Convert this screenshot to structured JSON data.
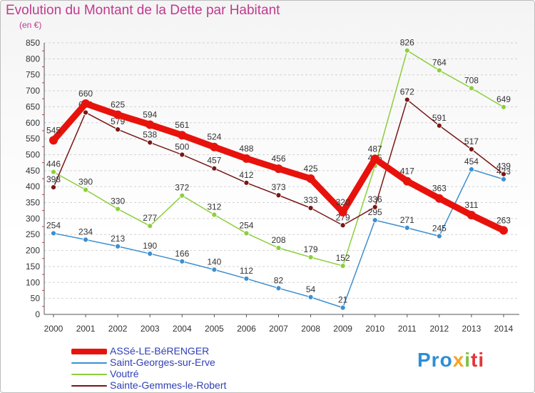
{
  "header": {
    "title": "Evolution du Montant de la Dette par Habitant",
    "unit": "(en €)"
  },
  "logo": {
    "text": "Proxiti"
  },
  "chart_data": {
    "type": "line",
    "title": "Evolution du Montant de la Dette par Habitant",
    "ylabel": "(en €)",
    "xlabel": "",
    "x": [
      "2000",
      "2001",
      "2002",
      "2003",
      "2004",
      "2005",
      "2006",
      "2007",
      "2008",
      "2009",
      "2010",
      "2011",
      "2012",
      "2013",
      "2014"
    ],
    "ylim": [
      0,
      850
    ],
    "yticks": [
      0,
      50,
      100,
      150,
      200,
      250,
      300,
      350,
      400,
      450,
      500,
      550,
      600,
      650,
      700,
      750,
      800,
      850
    ],
    "grid": "horizontal",
    "legend_position": "bottom-left",
    "series": [
      {
        "name": "ASSé-LE-BéRENGER",
        "color": "#e8120c",
        "values": [
          545,
          660,
          625,
          594,
          561,
          524,
          488,
          456,
          425,
          320,
          487,
          417,
          363,
          311,
          263
        ]
      },
      {
        "name": "Saint-Georges-sur-Erve",
        "color": "#3d8fd0",
        "values": [
          254,
          234,
          213,
          190,
          166,
          140,
          112,
          82,
          54,
          21,
          295,
          271,
          245,
          454,
          423
        ]
      },
      {
        "name": "Voutré",
        "color": "#8ccf3c",
        "values": [
          446,
          390,
          330,
          277,
          372,
          312,
          254,
          208,
          179,
          152,
          465,
          826,
          764,
          708,
          649
        ]
      },
      {
        "name": "Sainte-Gemmes-le-Robert",
        "color": "#7a1616",
        "values": [
          398,
          632,
          579,
          538,
          500,
          457,
          412,
          373,
          333,
          279,
          336,
          672,
          591,
          517,
          439
        ]
      }
    ]
  }
}
